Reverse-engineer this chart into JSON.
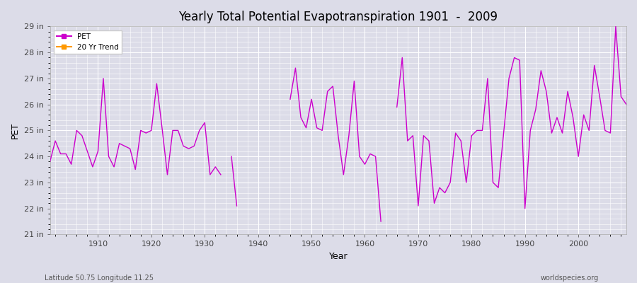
{
  "title": "Yearly Total Potential Evapotranspiration 1901  -  2009",
  "xlabel": "Year",
  "ylabel": "PET",
  "subtitle_left": "Latitude 50.75 Longitude 11.25",
  "subtitle_right": "worldspecies.org",
  "pet_color": "#cc00cc",
  "trend_color": "#ff9900",
  "bg_color": "#dcdce8",
  "ylim": [
    21,
    29
  ],
  "yticks": [
    21,
    22,
    23,
    24,
    25,
    26,
    27,
    28,
    29
  ],
  "ytick_labels": [
    "21 in",
    "22 in",
    "23 in",
    "24 in",
    "25 in",
    "26 in",
    "27 in",
    "28 in",
    "29 in"
  ],
  "xtick_positions": [
    1910,
    1920,
    1930,
    1940,
    1950,
    1960,
    1970,
    1980,
    1990,
    2000
  ],
  "years": [
    1901,
    1902,
    1903,
    1904,
    1905,
    1906,
    1907,
    1908,
    1909,
    1910,
    1911,
    1912,
    1913,
    1914,
    1915,
    1916,
    1917,
    1918,
    1919,
    1920,
    1921,
    1922,
    1923,
    1924,
    1925,
    1926,
    1927,
    1928,
    1929,
    1930,
    1931,
    1932,
    1933,
    1934,
    1935,
    1936,
    1937,
    1938,
    1939,
    1940,
    1941,
    1942,
    1943,
    1944,
    1945,
    1946,
    1947,
    1948,
    1949,
    1950,
    1951,
    1952,
    1953,
    1954,
    1955,
    1956,
    1957,
    1958,
    1959,
    1960,
    1961,
    1962,
    1963,
    1964,
    1965,
    1966,
    1967,
    1968,
    1969,
    1970,
    1971,
    1972,
    1973,
    1974,
    1975,
    1976,
    1977,
    1978,
    1979,
    1980,
    1981,
    1982,
    1983,
    1984,
    1985,
    1986,
    1987,
    1988,
    1989,
    1990,
    1991,
    1992,
    1993,
    1994,
    1995,
    1996,
    1997,
    1998,
    1999,
    2000,
    2001,
    2002,
    2003,
    2004,
    2005,
    2006,
    2007,
    2008,
    2009
  ],
  "pet_values": [
    23.8,
    null,
    null,
    null,
    null,
    null,
    null,
    null,
    null,
    null,
    null,
    null,
    null,
    null,
    null,
    null,
    null,
    null,
    null,
    null,
    null,
    null,
    null,
    null,
    null,
    null,
    null,
    null,
    null,
    null,
    null,
    null,
    null,
    null,
    null,
    null,
    null,
    null,
    null,
    null,
    null,
    null,
    null,
    null,
    null,
    null,
    null,
    null,
    null,
    null,
    null,
    null,
    null,
    null,
    null,
    null,
    null,
    null,
    null,
    null,
    null,
    null,
    null,
    null,
    null,
    null,
    null,
    null,
    null,
    null,
    null,
    null,
    null,
    null,
    null,
    null,
    null,
    null,
    null,
    null,
    null,
    null,
    null,
    null,
    null,
    null,
    null,
    null,
    null,
    null,
    null,
    null,
    null,
    null,
    null,
    null,
    null,
    null,
    null,
    null,
    null,
    null,
    null,
    null,
    null,
    null,
    null,
    null,
    null
  ]
}
